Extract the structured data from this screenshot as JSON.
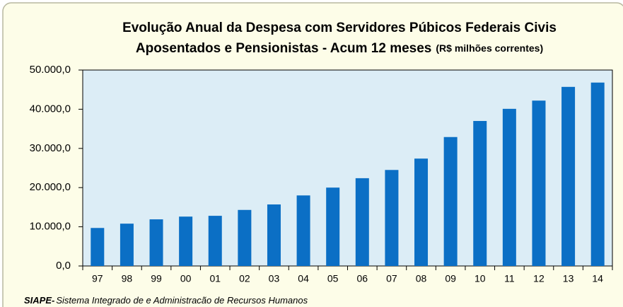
{
  "chart_data": {
    "type": "bar",
    "title": [
      "Evolução Anual da Despesa com Servidores Púbicos Federais Civis",
      "Aposentados e Pensionistas - Acum 12 meses"
    ],
    "subtitle": "(R$ milhões correntes)",
    "categories": [
      "97",
      "98",
      "99",
      "00",
      "01",
      "02",
      "03",
      "04",
      "05",
      "06",
      "07",
      "08",
      "09",
      "10",
      "11",
      "12",
      "13",
      "14"
    ],
    "values": [
      9700,
      10800,
      11900,
      12600,
      12800,
      14300,
      15700,
      18000,
      20000,
      22400,
      24500,
      27400,
      32900,
      37000,
      40100,
      42200,
      45700,
      46800
    ],
    "color": "#0b6fc5",
    "ylim": [
      0,
      50000
    ],
    "yticks": [
      {
        "value": 0,
        "label": "0,0"
      },
      {
        "value": 10000,
        "label": "10.000,0"
      },
      {
        "value": 20000,
        "label": "20.000,0"
      },
      {
        "value": 30000,
        "label": "30.000,0"
      },
      {
        "value": 40000,
        "label": "40.000,0"
      },
      {
        "value": 50000,
        "label": "50.000,0"
      }
    ],
    "grid": false,
    "source": {
      "label": "SIAPE-",
      "text": "Sistema Integrado de e Administracão de Recursos Humanos"
    }
  }
}
